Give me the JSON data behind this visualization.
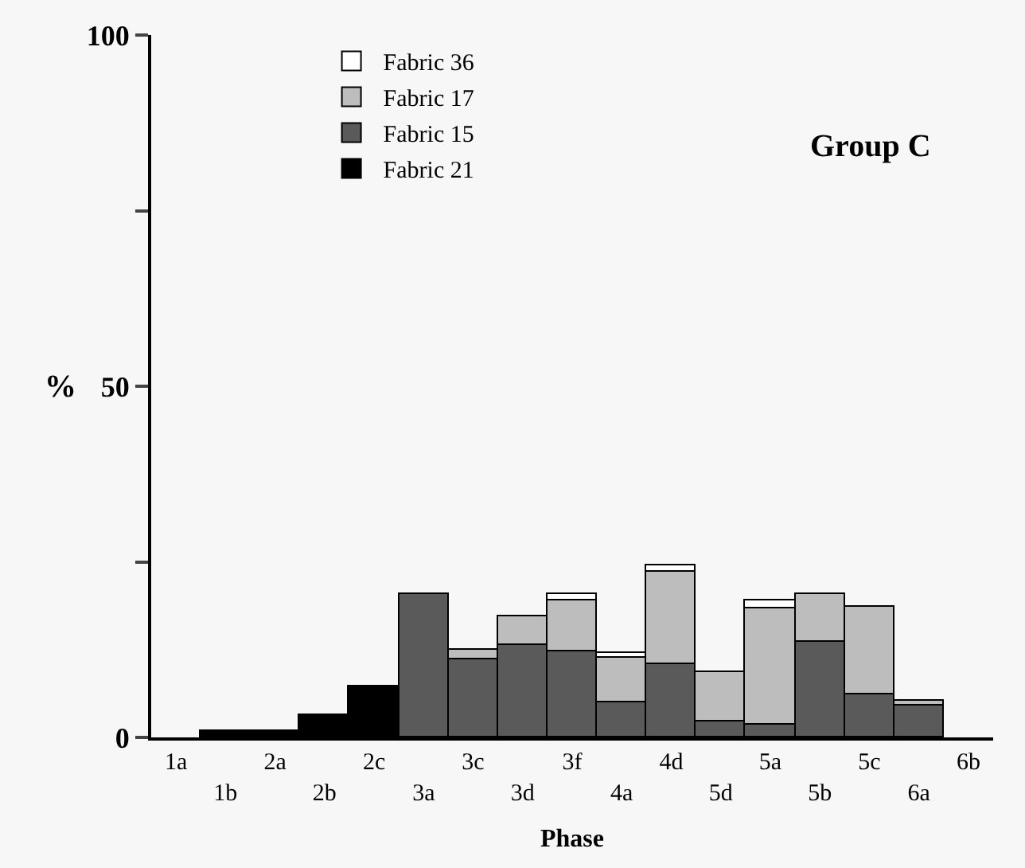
{
  "chart_data": {
    "type": "bar",
    "stacked": true,
    "title": "Group C",
    "xlabel": "Phase",
    "ylabel": "%",
    "categories": [
      "1a",
      "1b",
      "2a",
      "2b",
      "2c",
      "3a",
      "3c",
      "3d",
      "3f",
      "4a",
      "4d",
      "5d",
      "5a",
      "5b",
      "5c",
      "6a",
      "6b"
    ],
    "series": [
      {
        "name": "Fabric 21",
        "color": "#000000",
        "values": [
          null,
          1,
          1,
          3.2,
          7.2,
          null,
          null,
          null,
          null,
          null,
          null,
          null,
          null,
          null,
          null,
          null,
          null
        ]
      },
      {
        "name": "Fabric 15",
        "color": "#5a5a5a",
        "values": [
          null,
          null,
          null,
          null,
          null,
          20.4,
          11,
          13.2,
          12.2,
          5.1,
          10.4,
          2.3,
          1.9,
          13.5,
          6.1,
          4.6,
          null
        ]
      },
      {
        "name": "Fabric 17",
        "color": "#bdbdbd",
        "values": [
          null,
          null,
          null,
          null,
          null,
          null,
          1.4,
          4.1,
          7.3,
          6.2,
          13.1,
          6.9,
          16.5,
          6.9,
          12.6,
          0.7,
          null
        ]
      },
      {
        "name": "Fabric 36",
        "color": "#ffffff",
        "values": [
          null,
          null,
          null,
          null,
          null,
          null,
          null,
          null,
          0.9,
          0.7,
          0.9,
          null,
          1,
          null,
          null,
          null,
          null
        ]
      }
    ],
    "ylim": [
      0,
      100
    ],
    "yticks": [
      0,
      {
        "value": 25,
        "label": null
      },
      50,
      {
        "value": 75,
        "label": null
      },
      100
    ],
    "legend": "top left"
  }
}
